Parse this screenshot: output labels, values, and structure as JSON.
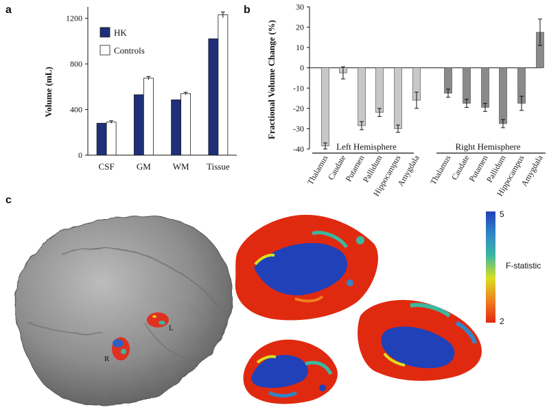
{
  "panels": {
    "a": "a",
    "b": "b",
    "c": "c"
  },
  "chart_data": [
    {
      "id": "a",
      "type": "bar",
      "categories": [
        "CSF",
        "GM",
        "WM",
        "Tissue"
      ],
      "series": [
        {
          "name": "HK",
          "values": [
            280,
            530,
            485,
            1020
          ],
          "color": "#1f2f7a"
        },
        {
          "name": "Controls",
          "values": [
            290,
            675,
            540,
            1230
          ],
          "errors": [
            12,
            15,
            12,
            25
          ],
          "color": "#ffffff"
        }
      ],
      "ylabel": "Volume (mL)",
      "yticks": [
        0,
        400,
        800,
        1200
      ],
      "ylim": [
        0,
        1300
      ],
      "legend": "top-left"
    },
    {
      "id": "b",
      "type": "bar",
      "categories": [
        "Thalamus",
        "Caudate",
        "Putamen",
        "Pallidum",
        "Hippocampus",
        "Amygdala",
        "Thalamus",
        "Caudate",
        "Putamen",
        "Pallidum",
        "Hippocampus",
        "Amygdala"
      ],
      "values": [
        -38.5,
        -2.5,
        -28.5,
        -22,
        -30,
        -16,
        -12.5,
        -17.5,
        -19.5,
        -27.5,
        -17.5,
        17.5
      ],
      "errors": [
        1.5,
        3,
        2,
        2,
        1.8,
        4,
        2,
        2,
        2,
        2,
        3.5,
        6.5
      ],
      "colors": [
        "#c8c8c8",
        "#c8c8c8",
        "#c8c8c8",
        "#c8c8c8",
        "#c8c8c8",
        "#c8c8c8",
        "#8a8a8a",
        "#8a8a8a",
        "#8a8a8a",
        "#8a8a8a",
        "#8a8a8a",
        "#8a8a8a"
      ],
      "ylabel": "Fractional Volume Change (%)",
      "yticks": [
        -40,
        -30,
        -20,
        -10,
        0,
        10,
        20,
        30
      ],
      "ylim": [
        -40,
        30
      ],
      "groups": [
        "Left Hemisphere",
        "Right Hemisphere"
      ]
    }
  ],
  "panel_c": {
    "markers": {
      "left": "L",
      "right": "R"
    },
    "colorbar": {
      "max_label": "5",
      "min_label": "2",
      "label": "F-statistic",
      "colors": [
        "#2141b8",
        "#2f86c8",
        "#3cb8a0",
        "#d8e020",
        "#f08020",
        "#e02810"
      ]
    }
  }
}
